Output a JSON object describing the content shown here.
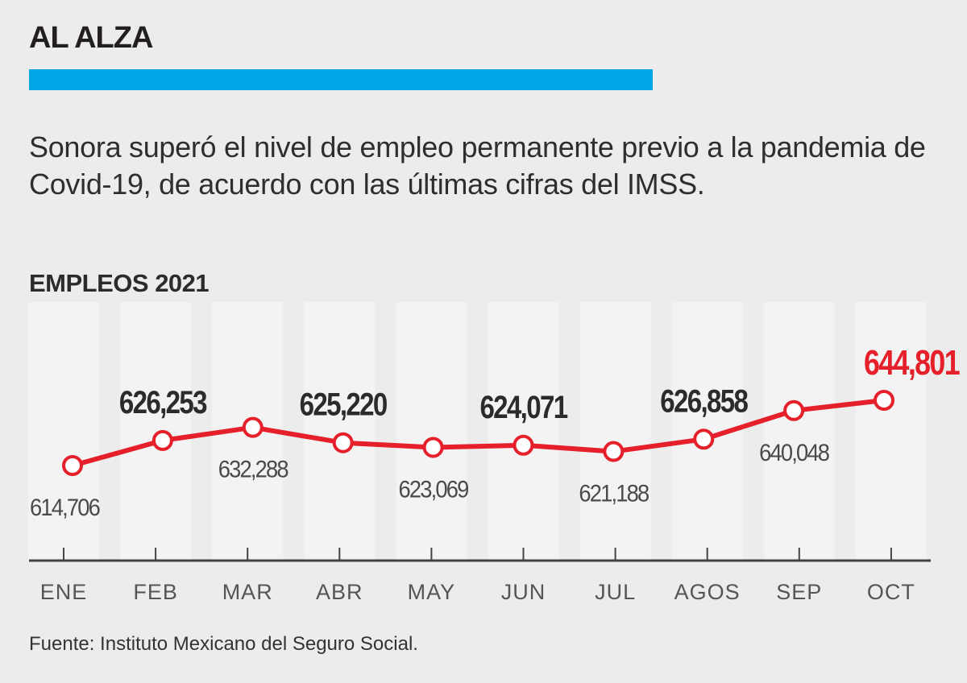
{
  "header": {
    "title": "AL ALZA",
    "description": "Sonora superó el nivel de empleo permanente previo a la pandemia de Covid-19, de acuerdo con las últimas cifras del IMSS."
  },
  "colors": {
    "accent": "#00a6e6",
    "line": "#e5202a",
    "highlight": "#e5202a",
    "text": "#333333",
    "axis": "#444444"
  },
  "chart_data": {
    "type": "line",
    "title": "EMPLEOS 2021",
    "categories": [
      "ENE",
      "FEB",
      "MAR",
      "ABR",
      "MAY",
      "JUN",
      "JUL",
      "AGOS",
      "SEP",
      "OCT"
    ],
    "series": [
      {
        "values": [
          614706,
          626253,
          632288,
          625220,
          623069,
          624071,
          621188,
          626858,
          640048,
          644801
        ]
      }
    ],
    "data_labels": [
      "614,706",
      "626,253",
      "632,288",
      "625,220",
      "623,069",
      "624,071",
      "621,188",
      "626,858",
      "640,048",
      "644,801"
    ],
    "label_position": [
      "below",
      "above",
      "below",
      "above",
      "below",
      "above",
      "below",
      "above",
      "below",
      "above"
    ],
    "highlighted_index": 9,
    "xlabel": "",
    "ylabel": "",
    "grid": false,
    "legend": "none"
  },
  "footer": {
    "source": "Fuente: Instituto Mexicano del Seguro Social."
  }
}
